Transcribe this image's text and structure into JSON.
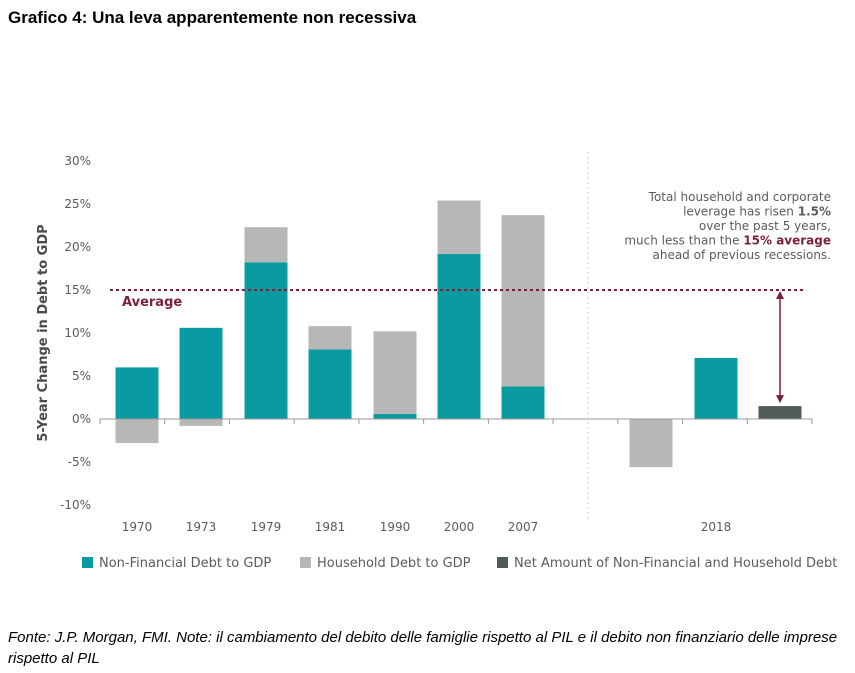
{
  "page": {
    "title": "Grafico 4: Una leva apparentemente non recessiva",
    "footnote": "Fonte: J.P. Morgan, FMI. Note: il cambiamento del debito delle famiglie rispetto al PIL e il debito non finanziario delle imprese rispetto al PIL"
  },
  "chart_data": {
    "type": "bar",
    "ylabel": "5-Year Change in Debt to GDP",
    "ylim": [
      -10,
      30
    ],
    "yticks": [
      "30%",
      "25%",
      "20%",
      "15%",
      "10%",
      "5%",
      "0%",
      "-5%",
      "-10%"
    ],
    "ytick_values": [
      30,
      25,
      20,
      15,
      10,
      5,
      0,
      -5,
      -10
    ],
    "x_labels": [
      "1970",
      "1973",
      "1979",
      "1981",
      "1990",
      "2000",
      "2007",
      "2018"
    ],
    "grid": false,
    "legend_position": "bottom",
    "series": [
      {
        "name": "Non-Financial Debt to GDP",
        "color": "#0a9ba1"
      },
      {
        "name": "Household Debt to GDP",
        "color": "#b7b7b7"
      },
      {
        "name": "Net Amount of Non-Financial and Household Debt",
        "color": "#4f5b58"
      }
    ],
    "bars": [
      {
        "label": "1970",
        "nonfin": 6.0,
        "household": -2.8
      },
      {
        "label": "1973",
        "nonfin": 10.6,
        "household": -0.8
      },
      {
        "label": "1979",
        "nonfin": 18.2,
        "household": 4.1
      },
      {
        "label": "1981",
        "nonfin": 8.1,
        "household": 2.7
      },
      {
        "label": "1990",
        "nonfin": 0.6,
        "household": 9.6
      },
      {
        "label": "2000",
        "nonfin": 19.2,
        "household": 6.2
      },
      {
        "label": "2007",
        "nonfin": 3.8,
        "household": 19.9
      },
      {
        "label": "",
        "nonfin": 0,
        "household": -5.6
      },
      {
        "label": "2018",
        "nonfin": 7.1,
        "household": 0
      },
      {
        "label": "",
        "net": 1.5
      }
    ],
    "average": {
      "label": "Average",
      "value": 15
    },
    "annotation": {
      "lines": [
        [
          {
            "t": "Total household and corporate",
            "b": false
          }
        ],
        [
          {
            "t": "leverage has risen ",
            "b": false
          },
          {
            "t": "1.5%",
            "b": true
          }
        ],
        [
          {
            "t": "over the past 5 years,",
            "b": false
          }
        ],
        [
          {
            "t": "much less than the ",
            "b": false
          },
          {
            "t": "15% average",
            "b": true,
            "c": "#7a1f3d"
          }
        ],
        [
          {
            "t": "ahead of previous recessions.",
            "b": false
          }
        ]
      ]
    }
  }
}
